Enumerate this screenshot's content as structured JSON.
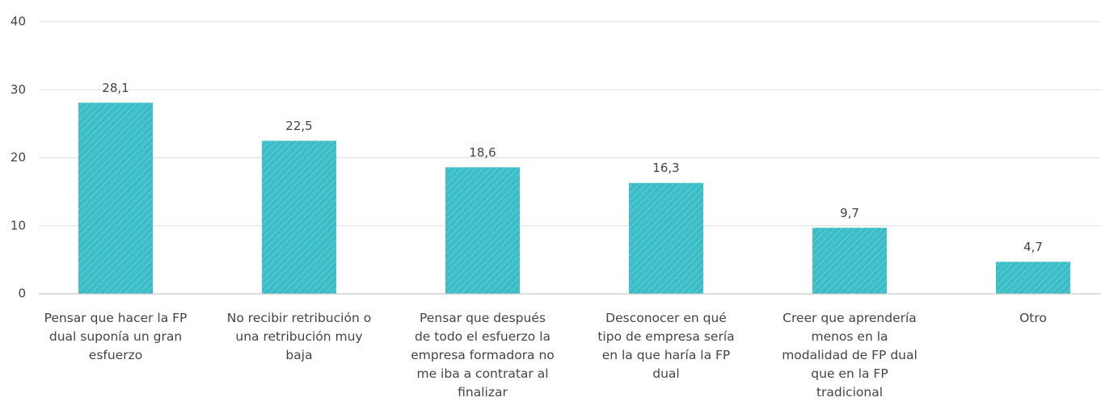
{
  "chart_data": {
    "type": "bar",
    "categories": [
      "Pensar que hacer la FP dual suponía un gran esfuerzo",
      "No recibir retribución o una retribución muy baja",
      "Pensar que después de todo el esfuerzo la empresa formadora no me iba a contratar al finalizar",
      "Desconocer en qué tipo de empresa sería en la que haría la FP dual",
      "Creer que aprendería menos en la modalidad de FP dual que en la FP tradicional",
      "Otro"
    ],
    "values": [
      28.1,
      22.5,
      18.6,
      16.3,
      9.7,
      4.7
    ],
    "value_labels": [
      "28,1",
      "22,5",
      "18,6",
      "16,3",
      "9,7",
      "4,7"
    ],
    "color": "#3bbdc8",
    "ylim": [
      0,
      40
    ],
    "yticks": [
      0,
      10,
      20,
      30,
      40
    ],
    "grid": true
  }
}
